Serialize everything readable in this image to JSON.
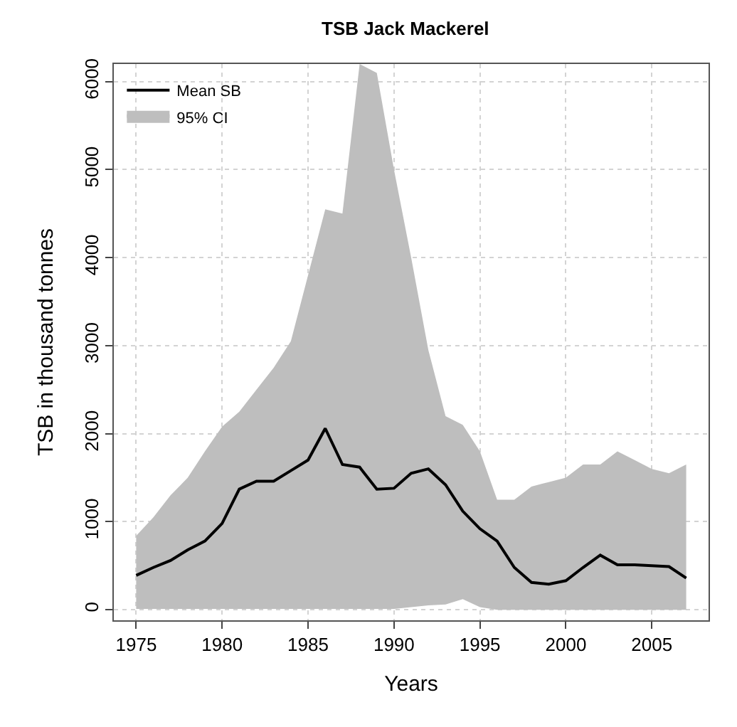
{
  "chart_data": {
    "type": "line",
    "title": "TSB Jack Mackerel",
    "xlabel": "Years",
    "ylabel": "TSB in thousand tonnes",
    "x": [
      1975,
      1976,
      1977,
      1978,
      1979,
      1980,
      1981,
      1982,
      1983,
      1984,
      1985,
      1986,
      1987,
      1988,
      1989,
      1990,
      1991,
      1992,
      1993,
      1994,
      1995,
      1996,
      1997,
      1998,
      1999,
      2000,
      2001,
      2002,
      2003,
      2004,
      2005,
      2006,
      2007
    ],
    "series": [
      {
        "name": "Mean SB",
        "color": "#000000",
        "values": [
          390,
          480,
          560,
          680,
          780,
          980,
          1370,
          1460,
          1460,
          1580,
          1700,
          2060,
          1650,
          1620,
          1370,
          1380,
          1550,
          1600,
          1420,
          1120,
          920,
          780,
          480,
          310,
          290,
          330,
          480,
          620,
          510,
          510,
          500,
          490,
          360
        ],
        "lower": [
          10,
          10,
          10,
          10,
          10,
          10,
          10,
          10,
          10,
          10,
          10,
          10,
          10,
          10,
          10,
          10,
          30,
          50,
          60,
          120,
          30,
          0,
          0,
          0,
          0,
          0,
          0,
          0,
          0,
          0,
          0,
          0,
          0
        ],
        "upper": [
          840,
          1050,
          1300,
          1500,
          1800,
          2080,
          2250,
          2500,
          2750,
          3050,
          3800,
          4550,
          4500,
          6200,
          6100,
          5000,
          4000,
          2950,
          2200,
          2100,
          1800,
          1250,
          1250,
          1400,
          1450,
          1500,
          1650,
          1650,
          1800,
          1700,
          1600,
          1550,
          1650
        ]
      },
      {
        "name": "95% CI",
        "type": "area",
        "color": "#bebebe",
        "values": [
          null,
          null,
          null,
          null,
          null,
          null,
          null,
          null,
          null,
          null,
          null,
          null,
          null,
          null,
          null,
          null,
          null,
          null,
          null,
          null,
          null,
          null,
          null,
          null,
          null,
          null,
          null,
          null,
          null,
          null,
          null,
          null,
          null
        ]
      }
    ],
    "xlim": [
      1973.7,
      2008.3
    ],
    "xticks": [
      1975,
      1980,
      1985,
      1990,
      1995,
      2000,
      2005
    ],
    "ylim": [
      -120,
      6200
    ],
    "yticks": [
      0,
      1000,
      2000,
      3000,
      4000,
      5000,
      6000
    ],
    "grid": true,
    "legend": "top left",
    "line_style": "solid"
  }
}
